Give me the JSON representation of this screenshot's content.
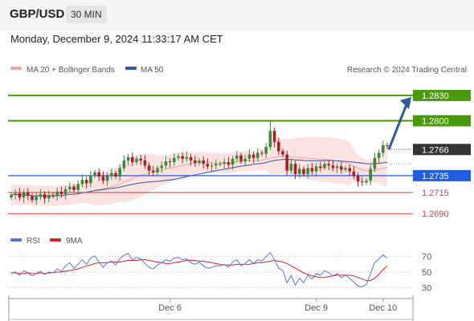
{
  "header": {
    "symbol": "GBP/USD",
    "timeframe": "30 MIN"
  },
  "timestamp": "Monday, December 9, 2024 11:33:17 AM CET",
  "credit": "Research © 2024 Trading Central",
  "colors": {
    "up": "#3a8a3a",
    "down": "#a82020",
    "ma20": "#f4a2a2",
    "band": "#fde2e2",
    "ma50": "#2c5a9a",
    "rsi": "#5b74d8",
    "rsi_ma": "#e02020",
    "accent_green": "#4a9a10",
    "accent_blue": "#1e5fe0",
    "accent_red": "#e33"
  },
  "chart_data": [
    {
      "type": "candlestick",
      "legend": [
        {
          "name": "MA 20 + Bollinger Bands",
          "color": "#f4a2a2"
        },
        {
          "name": "MA 50",
          "color": "#2c5a9a"
        }
      ],
      "x_ticks": [
        "Dec 6",
        "Dec 9",
        "Dec 10"
      ],
      "ylim": [
        1.2675,
        1.2848
      ],
      "closes": [
        1.2712,
        1.2714,
        1.2709,
        1.2715,
        1.2711,
        1.2706,
        1.271,
        1.2713,
        1.2708,
        1.2712,
        1.2711,
        1.2716,
        1.2713,
        1.2719,
        1.2722,
        1.2718,
        1.2725,
        1.273,
        1.2726,
        1.2735,
        1.2739,
        1.2734,
        1.2729,
        1.2735,
        1.2738,
        1.2734,
        1.2744,
        1.2753,
        1.2757,
        1.2751,
        1.2755,
        1.2753,
        1.2747,
        1.2741,
        1.2739,
        1.2744,
        1.2747,
        1.2752,
        1.2751,
        1.2756,
        1.2758,
        1.2755,
        1.2757,
        1.2753,
        1.275,
        1.2753,
        1.2749,
        1.2746,
        1.2747,
        1.2749,
        1.2749,
        1.2751,
        1.2748,
        1.2755,
        1.2759,
        1.2752,
        1.2755,
        1.276,
        1.2756,
        1.2762,
        1.2761,
        1.2769,
        1.2788,
        1.2775,
        1.2764,
        1.276,
        1.2741,
        1.2749,
        1.2737,
        1.2743,
        1.2737,
        1.2744,
        1.274,
        1.2746,
        1.2744,
        1.2749,
        1.2747,
        1.2744,
        1.2746,
        1.2742,
        1.2744,
        1.274,
        1.2735,
        1.2728,
        1.2727,
        1.2729,
        1.2743,
        1.2756,
        1.2762,
        1.2771,
        1.277
      ],
      "price_levels": [
        {
          "label": "1.2830",
          "value": 1.283,
          "style": "green-solid"
        },
        {
          "label": "1.2800",
          "value": 1.28,
          "style": "green-solid"
        },
        {
          "label": "1.2766",
          "value": 1.2766,
          "style": "current"
        },
        {
          "label": "1.2735",
          "value": 1.2735,
          "style": "blue-solid"
        },
        {
          "label": "1.2715",
          "value": 1.2715,
          "style": "red-thin"
        },
        {
          "label": "1.2690",
          "value": 1.269,
          "style": "red-thin"
        }
      ],
      "arrow": {
        "from_index": 90,
        "from_value": 1.2766,
        "to_value": 1.2828,
        "direction": "up",
        "color": "#2c5a9a"
      }
    },
    {
      "type": "line",
      "legend": [
        {
          "name": "RSI",
          "color": "#5b74d8"
        },
        {
          "name": "9MA",
          "color": "#e02020"
        }
      ],
      "ylim": [
        22,
        78
      ],
      "y_ticks": [
        70,
        50,
        30
      ],
      "series": [
        {
          "name": "RSI",
          "values": [
            48,
            50,
            46,
            52,
            49,
            45,
            48,
            51,
            47,
            50,
            49,
            54,
            51,
            58,
            62,
            55,
            60,
            66,
            60,
            68,
            71,
            63,
            56,
            62,
            64,
            59,
            67,
            72,
            74,
            66,
            69,
            67,
            61,
            56,
            54,
            59,
            62,
            66,
            64,
            68,
            69,
            66,
            67,
            62,
            60,
            63,
            58,
            55,
            56,
            58,
            58,
            60,
            56,
            63,
            66,
            58,
            61,
            66,
            61,
            66,
            64,
            70,
            75,
            66,
            55,
            52,
            36,
            46,
            33,
            42,
            36,
            46,
            41,
            48,
            46,
            52,
            49,
            45,
            48,
            43,
            46,
            42,
            37,
            32,
            31,
            34,
            48,
            62,
            67,
            72,
            68
          ]
        },
        {
          "name": "9MA",
          "values": [
            49,
            49,
            48,
            48,
            49,
            48,
            48,
            49,
            48,
            49,
            49,
            50,
            50,
            51,
            52,
            53,
            54,
            56,
            58,
            59,
            61,
            62,
            62,
            62,
            63,
            63,
            63,
            64,
            65,
            65,
            65,
            66,
            66,
            65,
            64,
            63,
            62,
            61,
            61,
            62,
            63,
            64,
            65,
            65,
            65,
            64,
            64,
            63,
            62,
            61,
            60,
            59,
            59,
            59,
            60,
            60,
            60,
            60,
            61,
            62,
            62,
            63,
            64,
            65,
            64,
            63,
            61,
            58,
            55,
            52,
            49,
            47,
            45,
            44,
            43,
            43,
            44,
            45,
            46,
            46,
            46,
            46,
            45,
            43,
            41,
            39,
            39,
            42,
            47,
            53,
            58
          ]
        }
      ]
    }
  ]
}
